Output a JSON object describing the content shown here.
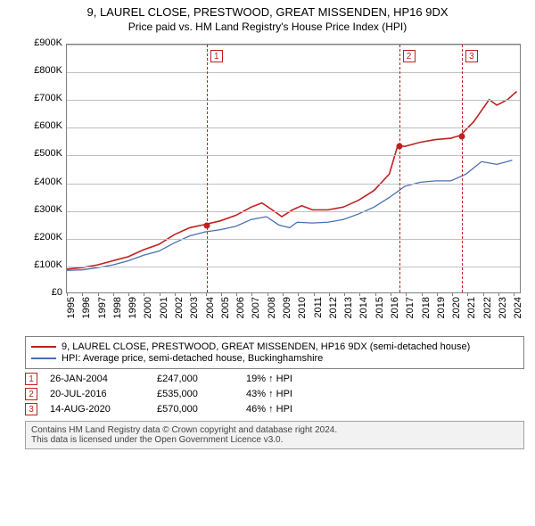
{
  "title": {
    "line1": "9, LAUREL CLOSE, PRESTWOOD, GREAT MISSENDEN, HP16 9DX",
    "line2": "Price paid vs. HM Land Registry's House Price Index (HPI)"
  },
  "chart": {
    "type": "line",
    "background_color": "#ffffff",
    "grid_color": "#c0c0c0",
    "axis_color": "#808080",
    "ylim": [
      0,
      900000
    ],
    "ytick_step": 100000,
    "yticks": [
      "£0",
      "£100K",
      "£200K",
      "£300K",
      "£400K",
      "£500K",
      "£600K",
      "£700K",
      "£800K",
      "£900K"
    ],
    "xlim": [
      1995,
      2024.5
    ],
    "xticks": [
      1995,
      1996,
      1997,
      1998,
      1999,
      2000,
      2001,
      2002,
      2003,
      2004,
      2005,
      2006,
      2007,
      2008,
      2009,
      2010,
      2011,
      2012,
      2013,
      2014,
      2015,
      2016,
      2017,
      2018,
      2019,
      2020,
      2021,
      2022,
      2023,
      2024
    ],
    "label_fontsize": 11,
    "series": [
      {
        "name": "9, LAUREL CLOSE, PRESTWOOD, GREAT MISSENDEN, HP16 9DX (semi-detached house)",
        "color": "#c02020",
        "line_width": 1.6,
        "points": [
          [
            1995,
            85000
          ],
          [
            1996,
            90000
          ],
          [
            1997,
            100000
          ],
          [
            1998,
            115000
          ],
          [
            1999,
            130000
          ],
          [
            2000,
            155000
          ],
          [
            2001,
            175000
          ],
          [
            2002,
            210000
          ],
          [
            2003,
            235000
          ],
          [
            2004,
            247000
          ],
          [
            2005,
            260000
          ],
          [
            2006,
            280000
          ],
          [
            2007,
            310000
          ],
          [
            2007.7,
            325000
          ],
          [
            2008.5,
            295000
          ],
          [
            2009,
            275000
          ],
          [
            2009.7,
            300000
          ],
          [
            2010.3,
            315000
          ],
          [
            2011,
            300000
          ],
          [
            2012,
            300000
          ],
          [
            2013,
            310000
          ],
          [
            2014,
            335000
          ],
          [
            2015,
            370000
          ],
          [
            2016,
            430000
          ],
          [
            2016.55,
            535000
          ],
          [
            2017,
            530000
          ],
          [
            2018,
            545000
          ],
          [
            2019,
            555000
          ],
          [
            2020,
            560000
          ],
          [
            2020.62,
            570000
          ],
          [
            2021.5,
            620000
          ],
          [
            2022.5,
            700000
          ],
          [
            2023,
            680000
          ],
          [
            2023.7,
            700000
          ],
          [
            2024.3,
            730000
          ]
        ]
      },
      {
        "name": "HPI: Average price, semi-detached house, Buckinghamshire",
        "color": "#4a6fb0",
        "line_width": 1.3,
        "points": [
          [
            1995,
            80000
          ],
          [
            1996,
            82000
          ],
          [
            1997,
            90000
          ],
          [
            1998,
            100000
          ],
          [
            1999,
            115000
          ],
          [
            2000,
            135000
          ],
          [
            2001,
            150000
          ],
          [
            2002,
            180000
          ],
          [
            2003,
            205000
          ],
          [
            2004,
            220000
          ],
          [
            2005,
            228000
          ],
          [
            2006,
            240000
          ],
          [
            2007,
            265000
          ],
          [
            2008,
            275000
          ],
          [
            2008.8,
            245000
          ],
          [
            2009.5,
            235000
          ],
          [
            2010,
            255000
          ],
          [
            2011,
            252000
          ],
          [
            2012,
            255000
          ],
          [
            2013,
            265000
          ],
          [
            2014,
            285000
          ],
          [
            2015,
            310000
          ],
          [
            2016,
            345000
          ],
          [
            2017,
            385000
          ],
          [
            2018,
            400000
          ],
          [
            2019,
            405000
          ],
          [
            2020,
            405000
          ],
          [
            2021,
            430000
          ],
          [
            2022,
            475000
          ],
          [
            2023,
            465000
          ],
          [
            2024,
            480000
          ]
        ]
      }
    ],
    "markers": [
      {
        "n": "1",
        "x": 2004.07,
        "y": 247000
      },
      {
        "n": "2",
        "x": 2016.55,
        "y": 535000
      },
      {
        "n": "3",
        "x": 2020.62,
        "y": 570000
      }
    ]
  },
  "legend": {
    "items": [
      {
        "color": "#c02020",
        "label": "9, LAUREL CLOSE, PRESTWOOD, GREAT MISSENDEN, HP16 9DX (semi-detached house)"
      },
      {
        "color": "#4a6fb0",
        "label": "HPI: Average price, semi-detached house, Buckinghamshire"
      }
    ]
  },
  "sales": [
    {
      "n": "1",
      "date": "26-JAN-2004",
      "price": "£247,000",
      "diff": "19% ↑ HPI"
    },
    {
      "n": "2",
      "date": "20-JUL-2016",
      "price": "£535,000",
      "diff": "43% ↑ HPI"
    },
    {
      "n": "3",
      "date": "14-AUG-2020",
      "price": "£570,000",
      "diff": "46% ↑ HPI"
    }
  ],
  "footer": {
    "line1": "Contains HM Land Registry data © Crown copyright and database right 2024.",
    "line2": "This data is licensed under the Open Government Licence v3.0."
  },
  "marker_border_color": "#c02020"
}
